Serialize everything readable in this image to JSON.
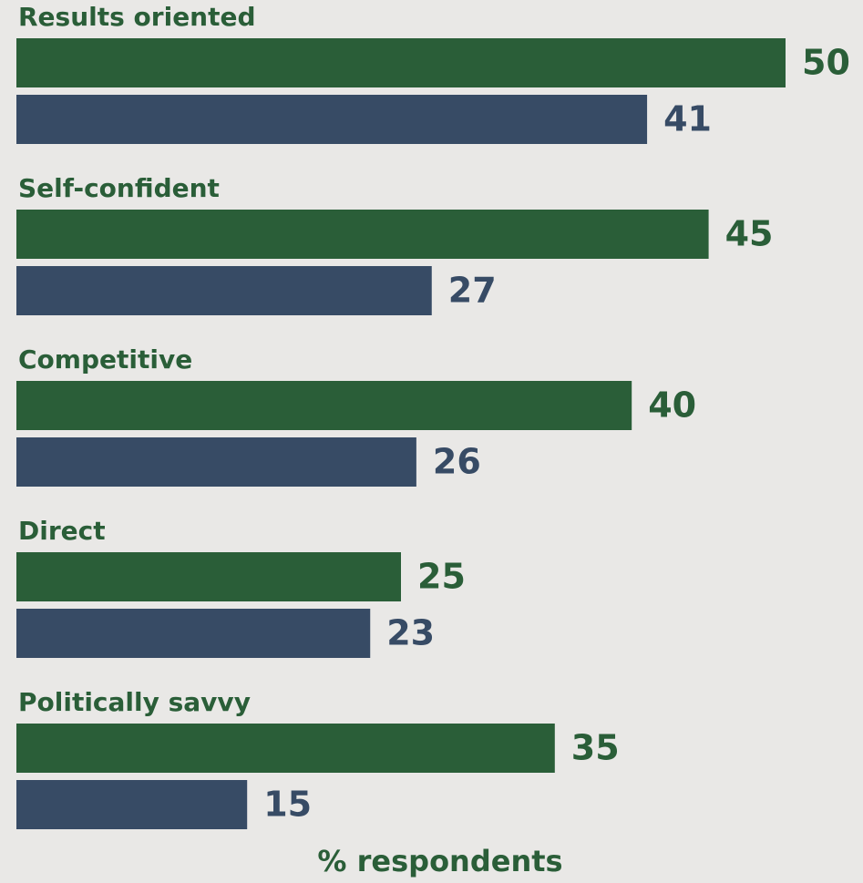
{
  "chart_data": {
    "type": "bar",
    "orientation": "horizontal",
    "categories": [
      "Results oriented",
      "Self-confident",
      "Competitive",
      "Direct",
      "Politically savvy"
    ],
    "series": [
      {
        "color": "#2a5e38",
        "values": [
          50,
          45,
          40,
          25,
          35
        ]
      },
      {
        "color": "#374b65",
        "values": [
          41,
          27,
          26,
          23,
          15
        ]
      }
    ],
    "xlabel": "% respondents",
    "xlim": [
      0,
      50
    ]
  }
}
